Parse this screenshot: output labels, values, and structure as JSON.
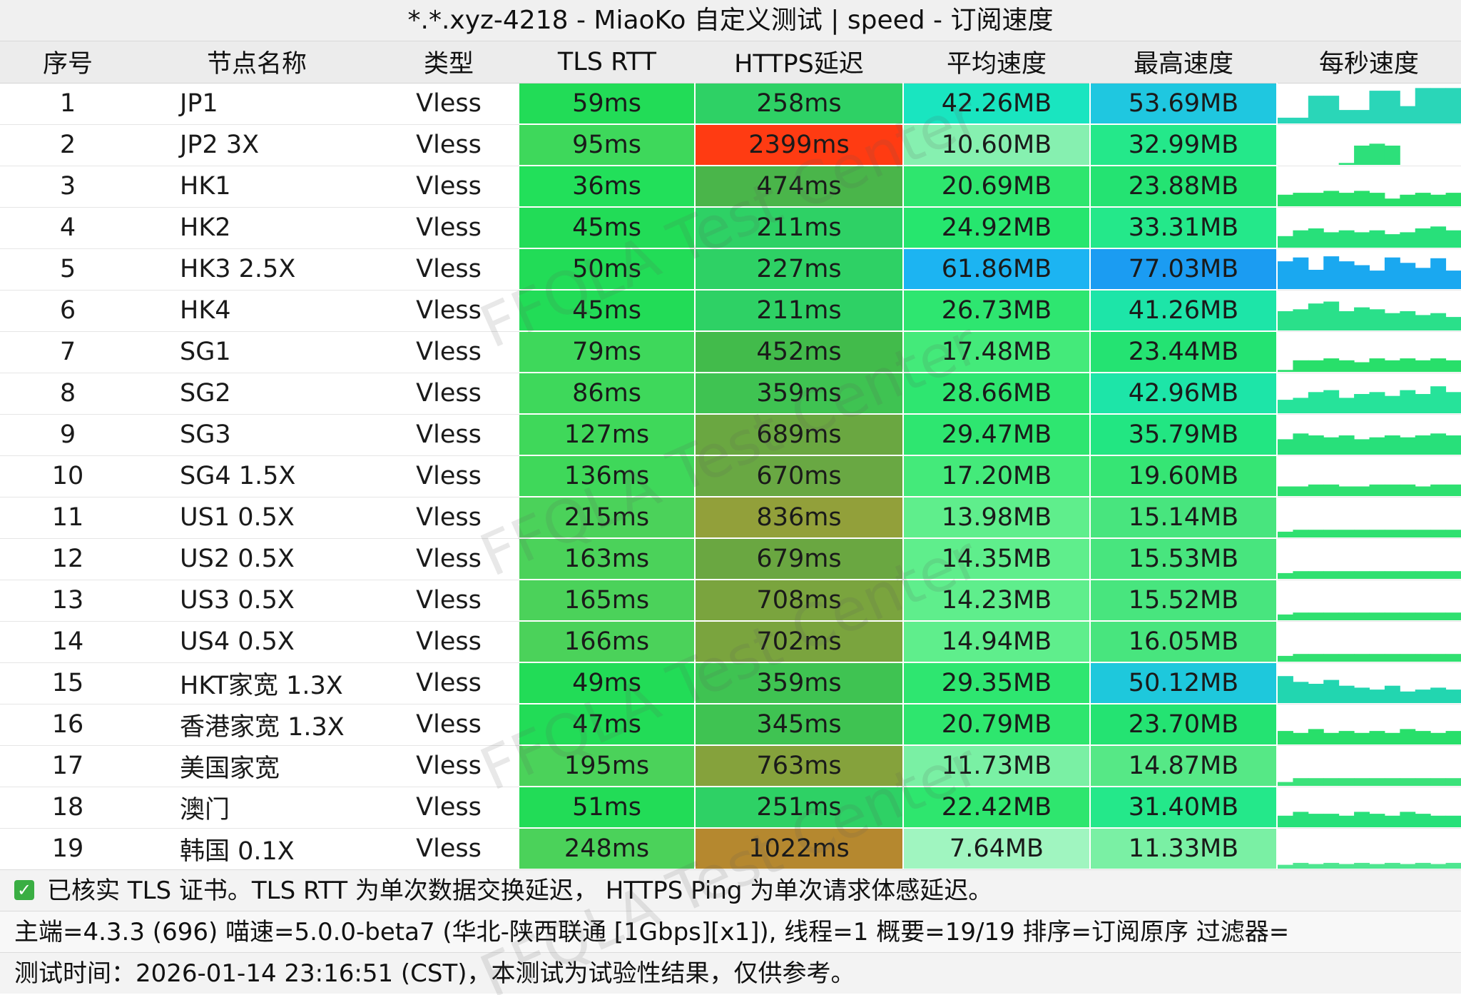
{
  "window": {
    "title": "*.*.xyz-4218 - MiaoKo 自定义测试 | speed - 订阅速度"
  },
  "columns": [
    "序号",
    "节点名称",
    "类型",
    "TLS RTT",
    "HTTPS延迟",
    "平均速度",
    "最高速度",
    "每秒速度"
  ],
  "rows": [
    {
      "idx": "1",
      "name": "JP1",
      "type": "Vless",
      "tls": "59ms",
      "https": "258ms",
      "avg": "42.26MB",
      "max": "53.69MB",
      "tls_color": "#22dc57",
      "https_color": "#2ed165",
      "avg_color": "#19e5c0",
      "max_color": "#1fc7e0",
      "spark": [
        0.15,
        0.15,
        0.72,
        0.72,
        0.35,
        0.35,
        0.85,
        0.85,
        0.45,
        0.92,
        0.92,
        0.92
      ],
      "spark_color": "#2ad6b8"
    },
    {
      "idx": "2",
      "name": "JP2 3X",
      "type": "Vless",
      "tls": "95ms",
      "https": "2399ms",
      "avg": "10.60MB",
      "max": "32.99MB",
      "tls_color": "#3ed85b",
      "https_color": "#ff3b12",
      "avg_color": "#86f0b0",
      "max_color": "#24e88a",
      "spark": [
        0,
        0,
        0,
        0,
        0.05,
        0.5,
        0.55,
        0.5,
        0,
        0,
        0,
        0
      ],
      "spark_color": "#2de07a"
    },
    {
      "idx": "3",
      "name": "HK1",
      "type": "Vless",
      "tls": "36ms",
      "https": "474ms",
      "avg": "20.69MB",
      "max": "23.88MB",
      "tls_color": "#22e05a",
      "https_color": "#4ab54a",
      "avg_color": "#2ee66e",
      "max_color": "#24e372",
      "spark": [
        0.3,
        0.35,
        0.35,
        0.4,
        0.35,
        0.4,
        0.35,
        0.2,
        0.3,
        0.35,
        0.3,
        0.35
      ],
      "spark_color": "#28df6a"
    },
    {
      "idx": "4",
      "name": "HK2",
      "type": "Vless",
      "tls": "45ms",
      "https": "211ms",
      "avg": "24.92MB",
      "max": "33.31MB",
      "tls_color": "#22dc57",
      "https_color": "#2ed165",
      "avg_color": "#26e66e",
      "max_color": "#24e88a",
      "spark": [
        0.3,
        0.45,
        0.5,
        0.4,
        0.45,
        0.4,
        0.45,
        0.35,
        0.4,
        0.5,
        0.55,
        0.45
      ],
      "spark_color": "#28e07a"
    },
    {
      "idx": "5",
      "name": "HK3 2.5X",
      "type": "Vless",
      "tls": "50ms",
      "https": "227ms",
      "avg": "61.86MB",
      "max": "77.03MB",
      "tls_color": "#22dc57",
      "https_color": "#2ed165",
      "avg_color": "#1cb4f2",
      "max_color": "#1b9cf2",
      "spark": [
        0.72,
        0.82,
        0.5,
        0.85,
        0.72,
        0.62,
        0.48,
        0.82,
        0.68,
        0.55,
        0.8,
        0.48
      ],
      "spark_color": "#1aa8f0"
    },
    {
      "idx": "6",
      "name": "HK4",
      "type": "Vless",
      "tls": "45ms",
      "https": "211ms",
      "avg": "26.73MB",
      "max": "41.26MB",
      "tls_color": "#22dc57",
      "https_color": "#2ed165",
      "avg_color": "#2ee670",
      "max_color": "#1de5a8",
      "spark": [
        0.5,
        0.55,
        0.7,
        0.75,
        0.5,
        0.6,
        0.55,
        0.45,
        0.5,
        0.4,
        0.45,
        0.35
      ],
      "spark_color": "#2ae08a"
    },
    {
      "idx": "7",
      "name": "SG1",
      "type": "Vless",
      "tls": "79ms",
      "https": "452ms",
      "avg": "17.48MB",
      "max": "23.44MB",
      "tls_color": "#3ed85b",
      "https_color": "#42bb4b",
      "avg_color": "#44ea7a",
      "max_color": "#24e372",
      "spark": [
        0.05,
        0.3,
        0.3,
        0.35,
        0.3,
        0.25,
        0.35,
        0.3,
        0.35,
        0.3,
        0.35,
        0.3
      ],
      "spark_color": "#28df6a"
    },
    {
      "idx": "8",
      "name": "SG2",
      "type": "Vless",
      "tls": "86ms",
      "https": "359ms",
      "avg": "28.66MB",
      "max": "42.96MB",
      "tls_color": "#3ed85b",
      "https_color": "#3fc352",
      "avg_color": "#2ee670",
      "max_color": "#1de5a8",
      "spark": [
        0.35,
        0.4,
        0.55,
        0.6,
        0.4,
        0.5,
        0.55,
        0.45,
        0.6,
        0.5,
        0.7,
        0.55
      ],
      "spark_color": "#26e39a"
    },
    {
      "idx": "9",
      "name": "SG3",
      "type": "Vless",
      "tls": "127ms",
      "https": "689ms",
      "avg": "29.47MB",
      "max": "35.79MB",
      "tls_color": "#3fd85a",
      "https_color": "#6aa741",
      "avg_color": "#2ee670",
      "max_color": "#22e682",
      "spark": [
        0.4,
        0.55,
        0.5,
        0.45,
        0.5,
        0.4,
        0.45,
        0.5,
        0.45,
        0.5,
        0.55,
        0.5
      ],
      "spark_color": "#28e07a"
    },
    {
      "idx": "10",
      "name": "SG4 1.5X",
      "type": "Vless",
      "tls": "136ms",
      "https": "670ms",
      "avg": "17.20MB",
      "max": "19.60MB",
      "tls_color": "#3fd85a",
      "https_color": "#69a843",
      "avg_color": "#44ea7a",
      "max_color": "#36e574",
      "spark": [
        0.25,
        0.25,
        0.3,
        0.3,
        0.25,
        0.25,
        0.3,
        0.3,
        0.3,
        0.25,
        0.3,
        0.3
      ],
      "spark_color": "#2ee070"
    },
    {
      "idx": "11",
      "name": "US1 0.5X",
      "type": "Vless",
      "tls": "215ms",
      "https": "836ms",
      "avg": "13.98MB",
      "max": "15.14MB",
      "tls_color": "#4bd25a",
      "https_color": "#92a03a",
      "avg_color": "#5fee8c",
      "max_color": "#48e57e",
      "spark": [
        0.15,
        0.2,
        0.2,
        0.2,
        0.2,
        0.2,
        0.2,
        0.2,
        0.2,
        0.2,
        0.2,
        0.2
      ],
      "spark_color": "#30e070"
    },
    {
      "idx": "12",
      "name": "US2 0.5X",
      "type": "Vless",
      "tls": "163ms",
      "https": "679ms",
      "avg": "14.35MB",
      "max": "15.53MB",
      "tls_color": "#4bd25a",
      "https_color": "#6aa741",
      "avg_color": "#5fee8c",
      "max_color": "#48e57e",
      "spark": [
        0.15,
        0.2,
        0.2,
        0.2,
        0.2,
        0.2,
        0.2,
        0.2,
        0.2,
        0.2,
        0.2,
        0.2
      ],
      "spark_color": "#30e070"
    },
    {
      "idx": "13",
      "name": "US3 0.5X",
      "type": "Vless",
      "tls": "165ms",
      "https": "708ms",
      "avg": "14.23MB",
      "max": "15.52MB",
      "tls_color": "#4bd25a",
      "https_color": "#7aa43e",
      "avg_color": "#5fee8c",
      "max_color": "#48e57e",
      "spark": [
        0.15,
        0.2,
        0.2,
        0.2,
        0.2,
        0.2,
        0.2,
        0.2,
        0.2,
        0.2,
        0.2,
        0.2
      ],
      "spark_color": "#30e070"
    },
    {
      "idx": "14",
      "name": "US4 0.5X",
      "type": "Vless",
      "tls": "166ms",
      "https": "702ms",
      "avg": "14.94MB",
      "max": "16.05MB",
      "tls_color": "#4bd25a",
      "https_color": "#7aa43e",
      "avg_color": "#5fee8c",
      "max_color": "#48e57e",
      "spark": [
        0.15,
        0.2,
        0.2,
        0.2,
        0.2,
        0.2,
        0.2,
        0.2,
        0.2,
        0.2,
        0.2,
        0.2
      ],
      "spark_color": "#30e070"
    },
    {
      "idx": "15",
      "name": "HKT家宽 1.3X",
      "type": "Vless",
      "tls": "49ms",
      "https": "359ms",
      "avg": "29.35MB",
      "max": "50.12MB",
      "tls_color": "#22dc57",
      "https_color": "#3fc352",
      "avg_color": "#2ee670",
      "max_color": "#1ec8dc",
      "spark": [
        0.7,
        0.55,
        0.5,
        0.6,
        0.45,
        0.4,
        0.35,
        0.45,
        0.3,
        0.35,
        0.4,
        0.35
      ],
      "spark_color": "#22d6b0"
    },
    {
      "idx": "16",
      "name": "香港家宽 1.3X",
      "type": "Vless",
      "tls": "47ms",
      "https": "345ms",
      "avg": "20.79MB",
      "max": "23.70MB",
      "tls_color": "#22dc57",
      "https_color": "#3fc352",
      "avg_color": "#2ee66e",
      "max_color": "#24e372",
      "spark": [
        0.35,
        0.3,
        0.4,
        0.3,
        0.35,
        0.3,
        0.35,
        0.3,
        0.4,
        0.35,
        0.3,
        0.35
      ],
      "spark_color": "#28df6a"
    },
    {
      "idx": "17",
      "name": "美国家宽",
      "type": "Vless",
      "tls": "195ms",
      "https": "763ms",
      "avg": "11.73MB",
      "max": "14.87MB",
      "tls_color": "#4bd25a",
      "https_color": "#85a23c",
      "avg_color": "#7af0a4",
      "max_color": "#56e886",
      "spark": [
        0.1,
        0.2,
        0.2,
        0.2,
        0.2,
        0.2,
        0.2,
        0.2,
        0.2,
        0.2,
        0.2,
        0.2
      ],
      "spark_color": "#3be27a"
    },
    {
      "idx": "18",
      "name": "澳门",
      "type": "Vless",
      "tls": "51ms",
      "https": "251ms",
      "avg": "22.42MB",
      "max": "31.40MB",
      "tls_color": "#22dc57",
      "https_color": "#2ed165",
      "avg_color": "#2ee66e",
      "max_color": "#24e88a",
      "spark": [
        0.3,
        0.4,
        0.35,
        0.35,
        0.3,
        0.4,
        0.35,
        0.3,
        0.4,
        0.35,
        0.3,
        0.3
      ],
      "spark_color": "#28e07a"
    },
    {
      "idx": "19",
      "name": "韩国 0.1X",
      "type": "Vless",
      "tls": "248ms",
      "https": "1022ms",
      "avg": "7.64MB",
      "max": "11.33MB",
      "tls_color": "#4bd25a",
      "https_color": "#b5882f",
      "avg_color": "#a0f5c0",
      "max_color": "#7af0a4",
      "spark": [
        0.1,
        0.15,
        0.12,
        0.15,
        0.12,
        0.15,
        0.12,
        0.15,
        0.12,
        0.15,
        0.12,
        0.15
      ],
      "spark_color": "#4ee690"
    }
  ],
  "footer": {
    "line1": "已核实 TLS 证书。TLS RTT 为单次数据交换延迟， HTTPS Ping 为单次请求体感延迟。",
    "line2": "主端=4.3.3 (696) 喵速=5.0.0-beta7 (华北-陕西联通 [1Gbps][x1]), 线程=1 概要=19/19 排序=订阅原序 过滤器=",
    "line3": "测试时间：2026-01-14 23:16:51 (CST)，本测试为试验性结果，仅供参考。"
  },
  "watermark": "FFQLA Test Center"
}
